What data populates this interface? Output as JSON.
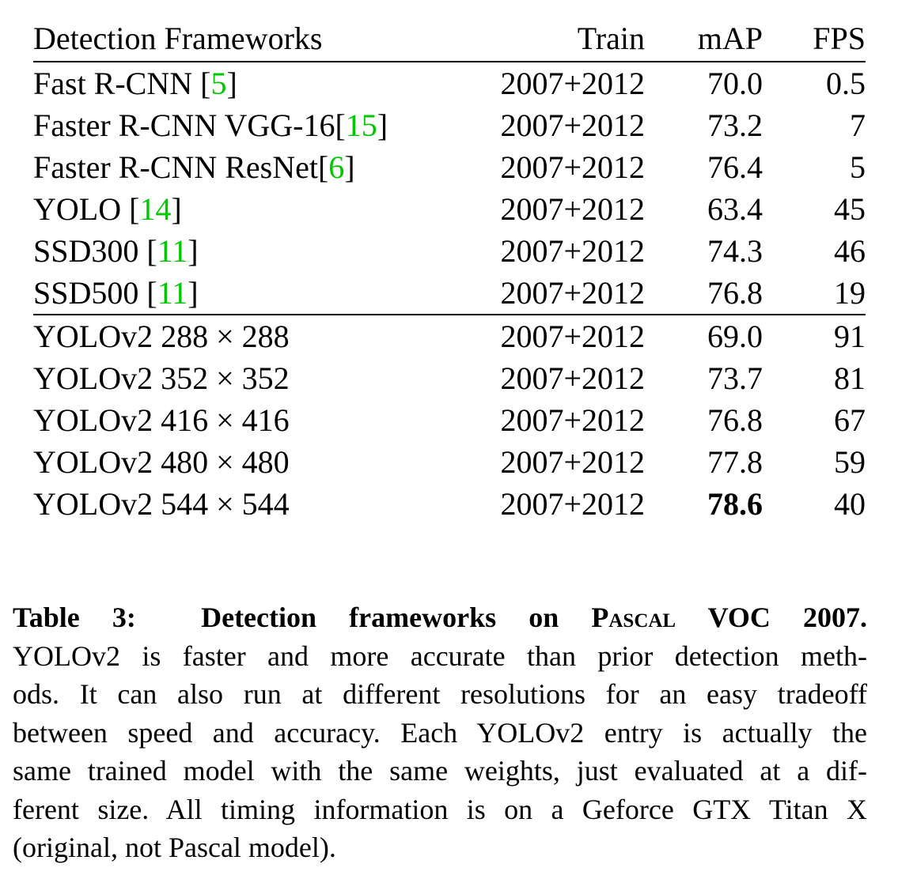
{
  "table": {
    "headers": [
      "Detection Frameworks",
      "Train",
      "mAP",
      "FPS"
    ],
    "rows": [
      {
        "name": "Fast R-CNN ",
        "ref": "5",
        "suffix": "]",
        "open": "[",
        "train": "2007+2012",
        "map": "70.0",
        "fps": "0.5"
      },
      {
        "name": "Faster R-CNN VGG-16",
        "ref": "15",
        "suffix": "]",
        "open": "[",
        "train": "2007+2012",
        "map": "73.2",
        "fps": "7"
      },
      {
        "name": "Faster R-CNN ResNet",
        "ref": "6",
        "suffix": "]",
        "open": "[",
        "train": "2007+2012",
        "map": "76.4",
        "fps": "5"
      },
      {
        "name": "YOLO ",
        "ref": "14",
        "suffix": "]",
        "open": "[",
        "train": "2007+2012",
        "map": "63.4",
        "fps": "45"
      },
      {
        "name": "SSD300 ",
        "ref": "11",
        "suffix": "]",
        "open": "[",
        "train": "2007+2012",
        "map": "74.3",
        "fps": "46"
      },
      {
        "name": "SSD500 ",
        "ref": "11",
        "suffix": "]",
        "open": "[",
        "train": "2007+2012",
        "map": "76.8",
        "fps": "19"
      },
      {
        "name": "YOLOv2 288 × 288",
        "train": "2007+2012",
        "map": "69.0",
        "fps": "91"
      },
      {
        "name": "YOLOv2 352 × 352",
        "train": "2007+2012",
        "map": "73.7",
        "fps": "81"
      },
      {
        "name": "YOLOv2 416 × 416",
        "train": "2007+2012",
        "map": "76.8",
        "fps": "67"
      },
      {
        "name": "YOLOv2 480 × 480",
        "train": "2007+2012",
        "map": "77.8",
        "fps": "59"
      },
      {
        "name": "YOLOv2 544 × 544",
        "train": "2007+2012",
        "map": "78.6",
        "fps": "40"
      }
    ]
  },
  "caption": {
    "label": "Table 3:",
    "title_a": "Detection frameworks on ",
    "title_sc": "Pascal",
    "title_b": " VOC 2007.",
    "lines": [
      "YOLOv2 is faster and more accurate than prior detection meth-",
      "ods. It can also run at different resolutions for an easy tradeoff",
      "between speed and accuracy. Each YOLOv2 entry is actually the",
      "same trained model with the same weights, just evaluated at a dif-",
      "ferent size. All timing information is on a Geforce GTX Titan X",
      "(original, not Pascal model)."
    ]
  }
}
